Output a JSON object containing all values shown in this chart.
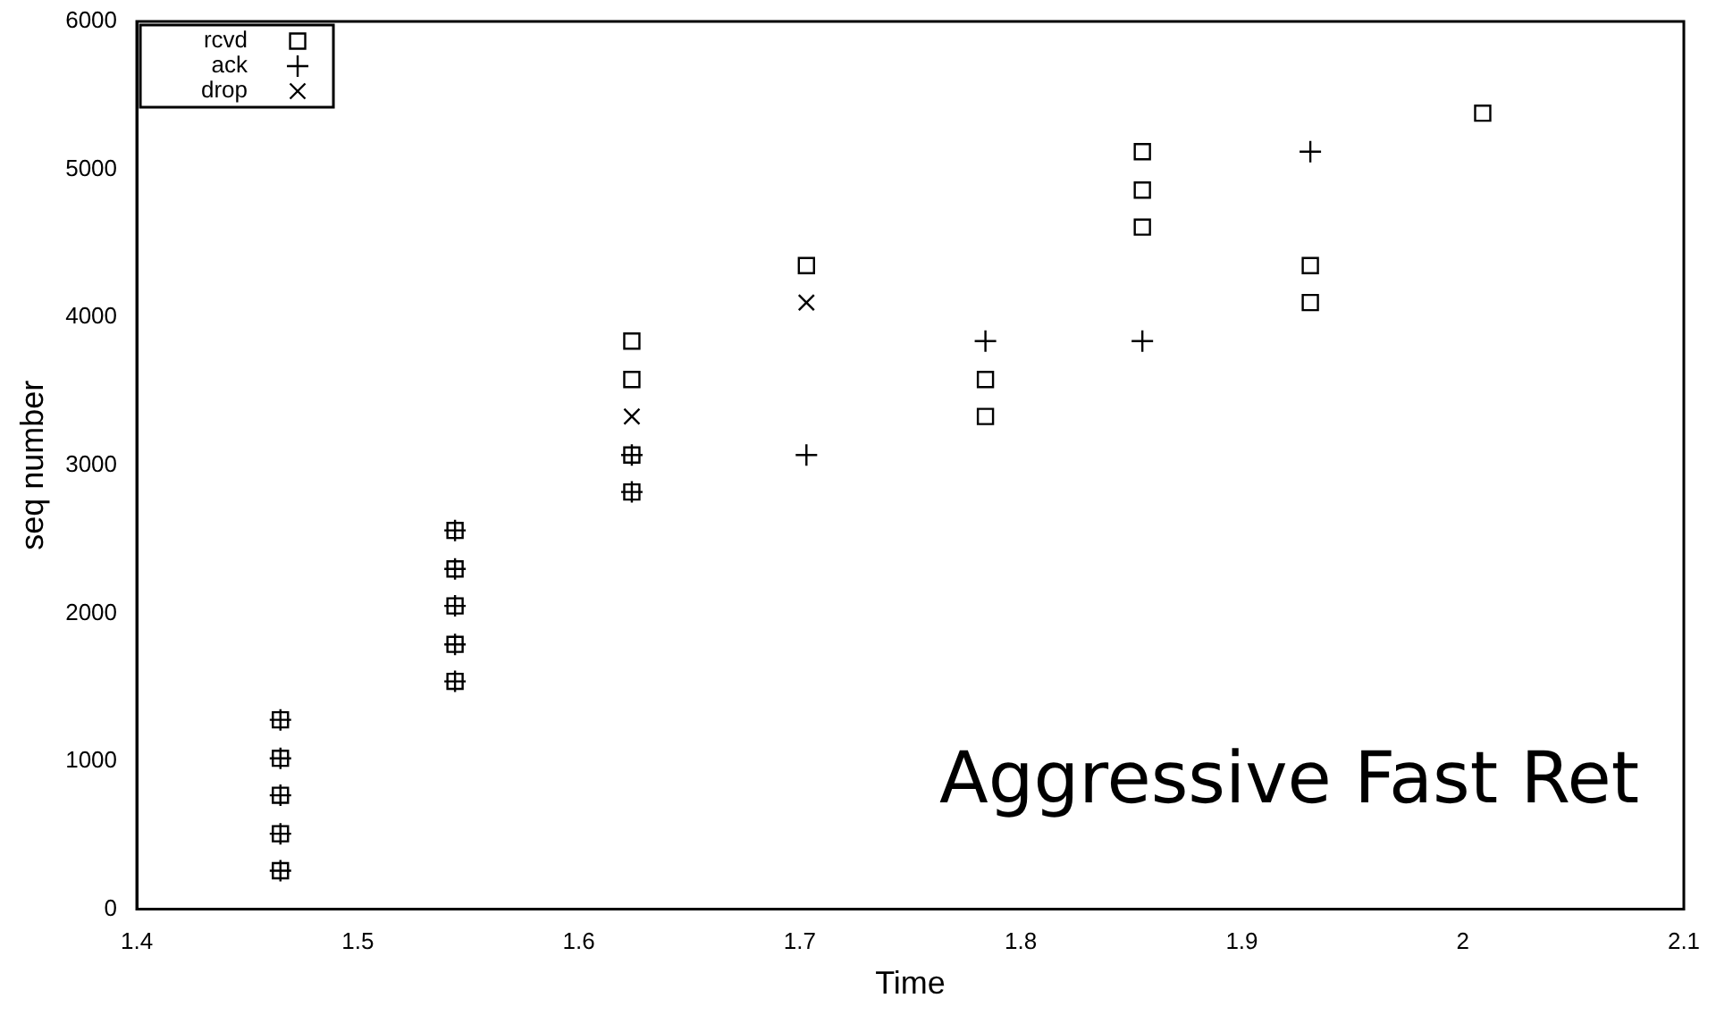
{
  "chart_data": {
    "type": "scatter",
    "xlabel": "Time",
    "ylabel": "seq number",
    "xlim": [
      1.4,
      2.1
    ],
    "xticks": [
      1.4,
      1.5,
      1.6,
      1.7,
      1.8,
      1.9,
      2,
      2.1
    ],
    "ylim": [
      0,
      6000
    ],
    "yticks": [
      0,
      1000,
      2000,
      3000,
      4000,
      5000,
      6000
    ],
    "grid": false,
    "legend": "top left",
    "annotations": [
      "Aggressive Fast Ret"
    ],
    "series": [
      {
        "name": "rcvd",
        "color": "#000000",
        "marker": "square",
        "x": [
          1.465,
          1.465,
          1.465,
          1.465,
          1.465,
          1.544,
          1.544,
          1.544,
          1.544,
          1.544,
          1.624,
          1.624,
          1.624,
          1.624,
          1.703,
          1.784,
          1.784,
          1.855,
          1.855,
          1.855,
          1.931,
          1.931,
          2.009
        ],
        "values": [
          260,
          510,
          770,
          1020,
          1280,
          1540,
          1790,
          2050,
          2300,
          2560,
          2820,
          3070,
          3580,
          3840,
          4350,
          3330,
          3580,
          4610,
          4860,
          5120,
          4100,
          4350,
          5380
        ]
      },
      {
        "name": "ack",
        "color": "#000000",
        "marker": "cross",
        "x": [
          1.465,
          1.465,
          1.465,
          1.465,
          1.465,
          1.544,
          1.544,
          1.544,
          1.544,
          1.544,
          1.624,
          1.624,
          1.703,
          1.784,
          1.855,
          1.931
        ],
        "values": [
          260,
          510,
          770,
          1020,
          1280,
          1540,
          1790,
          2050,
          2300,
          2560,
          2820,
          3070,
          3070,
          3840,
          3840,
          5120
        ]
      },
      {
        "name": "drop",
        "color": "#000000",
        "marker": "x",
        "x": [
          1.624,
          1.703
        ],
        "values": [
          3330,
          4100
        ]
      }
    ]
  }
}
